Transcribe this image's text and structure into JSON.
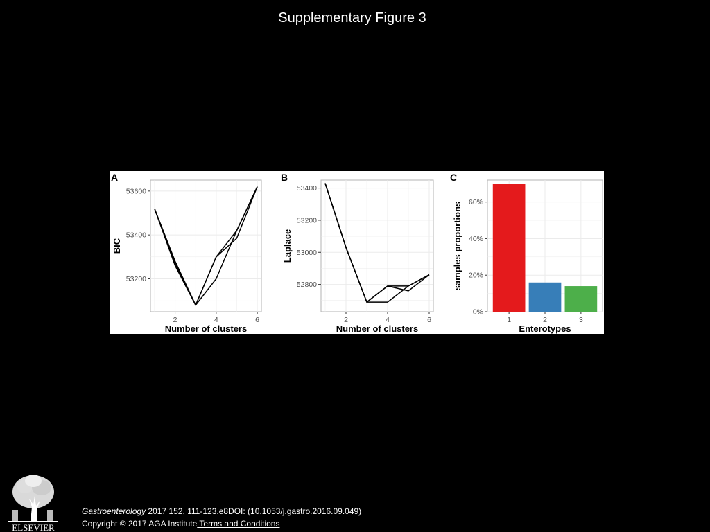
{
  "slide": {
    "title": "Supplementary Figure 3"
  },
  "footer": {
    "journal": "Gastroenterology",
    "citation_rest": " 2017 152, 111-123.e8DOI: (10.1053/j.gastro.2016.09.049)",
    "copyright": "Copyright © 2017 AGA Institute",
    "terms_link": " Terms and Conditions",
    "logo_text": "ELSEVIER"
  },
  "colors": {
    "background": "#000000",
    "panel_background": "#ffffff",
    "plot_background": "#ffffff",
    "grid": "#ebebeb",
    "line": "#000000",
    "bar_1": "#e41a1c",
    "bar_2": "#377eb8",
    "bar_3": "#4daf4a"
  },
  "chart_data": [
    {
      "panel": "A",
      "type": "line",
      "xlabel": "Number of clusters",
      "ylabel": "BIC",
      "xlim": [
        0.8,
        6.2
      ],
      "ylim": [
        53050,
        53650
      ],
      "xticks": [
        2,
        4,
        6
      ],
      "yticks": [
        53200,
        53400,
        53600
      ],
      "grid": true,
      "series": [
        {
          "x": [
            1,
            2,
            3,
            4,
            5,
            6
          ],
          "y": [
            53520,
            53280,
            53080,
            53300,
            53420,
            53620
          ]
        },
        {
          "x": [
            1,
            2,
            3,
            4,
            5,
            6
          ],
          "y": [
            53520,
            53260,
            53080,
            53200,
            53420,
            53620
          ]
        },
        {
          "x": [
            1,
            2,
            3,
            4,
            5,
            6
          ],
          "y": [
            53520,
            53270,
            53080,
            53300,
            53385,
            53620
          ]
        }
      ]
    },
    {
      "panel": "B",
      "type": "line",
      "xlabel": "Number of clusters",
      "ylabel": "Laplace",
      "xlim": [
        0.8,
        6.2
      ],
      "ylim": [
        52630,
        53450
      ],
      "xticks": [
        2,
        4,
        6
      ],
      "yticks": [
        52800,
        53000,
        53200,
        53400
      ],
      "grid": true,
      "series": [
        {
          "x": [
            1,
            2,
            3,
            4,
            5,
            6
          ],
          "y": [
            53430,
            53030,
            52690,
            52690,
            52790,
            52860
          ]
        },
        {
          "x": [
            1,
            2,
            3,
            4,
            5,
            6
          ],
          "y": [
            53430,
            53030,
            52690,
            52790,
            52760,
            52860
          ]
        },
        {
          "x": [
            1,
            2,
            3,
            4,
            5,
            6
          ],
          "y": [
            53430,
            53030,
            52690,
            52790,
            52790,
            52860
          ]
        }
      ]
    },
    {
      "panel": "C",
      "type": "bar",
      "xlabel": "Enterotypes",
      "ylabel": "samples proportions",
      "categories": [
        "1",
        "2",
        "3"
      ],
      "values": [
        0.7,
        0.16,
        0.14
      ],
      "ylim": [
        0,
        0.72
      ],
      "yticks": [
        0,
        0.2,
        0.4,
        0.6
      ],
      "ytick_labels": [
        "0%",
        "20%",
        "40%",
        "60%"
      ],
      "grid": true
    }
  ]
}
